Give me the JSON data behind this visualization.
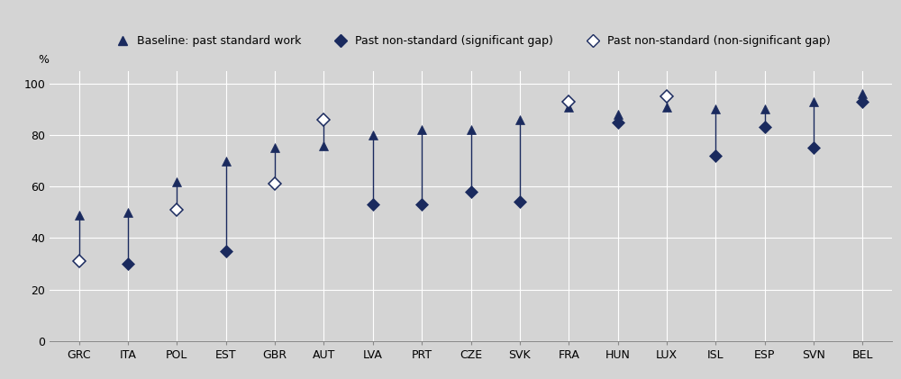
{
  "countries": [
    "GRC",
    "ITA",
    "POL",
    "EST",
    "GBR",
    "AUT",
    "LVA",
    "PRT",
    "CZE",
    "SVK",
    "FRA",
    "HUN",
    "LUX",
    "ISL",
    "ESP",
    "SVN",
    "BEL"
  ],
  "baseline": [
    49,
    50,
    62,
    70,
    75,
    76,
    80,
    82,
    82,
    86,
    91,
    88,
    91,
    90,
    90,
    93,
    96
  ],
  "non_standard": [
    31,
    30,
    51,
    35,
    61,
    86,
    53,
    53,
    58,
    54,
    93,
    85,
    95,
    72,
    83,
    75,
    93
  ],
  "significant": [
    false,
    true,
    false,
    true,
    false,
    false,
    true,
    true,
    true,
    true,
    false,
    true,
    false,
    true,
    true,
    true,
    true
  ],
  "marker_color_filled": "#1a2a5e",
  "marker_color_empty": "#ffffff",
  "marker_edge_color": "#1a2a5e",
  "line_color": "#1a2a5e",
  "plot_bg_color": "#d4d4d4",
  "fig_bg_color": "#d4d4d4",
  "grid_color": "#ffffff",
  "ylabel": "%",
  "ylim": [
    0,
    105
  ],
  "yticks": [
    0,
    20,
    40,
    60,
    80,
    100
  ],
  "legend_labels": [
    "Baseline: past standard work",
    "Past non-standard (significant gap)",
    "Past non-standard (non-significant gap)"
  ],
  "tick_fontsize": 9.0,
  "legend_fontsize": 9.0,
  "marker_size_tri": 7,
  "marker_size_dia": 7,
  "line_width": 1.0
}
